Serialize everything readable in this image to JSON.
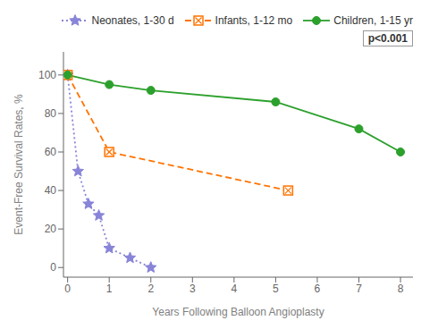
{
  "chart_data": {
    "type": "line",
    "xlabel": "Years Following Balloon Angioplasty",
    "ylabel": "Event-Free Survival Rates, %",
    "xlim": [
      -0.1,
      8.3
    ],
    "ylim": [
      -5,
      112
    ],
    "xticks": [
      0,
      1,
      2,
      3,
      4,
      5,
      6,
      7,
      8
    ],
    "yticks": [
      0,
      20,
      40,
      60,
      80,
      100
    ],
    "grid": false,
    "legend": "upper right",
    "annotations": [
      "p<0.001"
    ],
    "series": [
      {
        "name": "Neonates, 1-30 d",
        "x": [
          0,
          0.25,
          0.5,
          0.75,
          1.0,
          1.5,
          2.0
        ],
        "values": [
          100,
          50,
          33,
          27,
          10,
          5,
          0
        ],
        "color": "#8884d8",
        "marker": "star",
        "line_style": "dotted"
      },
      {
        "name": "Infants, 1-12 mo",
        "x": [
          0,
          1.0,
          5.3
        ],
        "values": [
          100,
          60,
          40
        ],
        "color": "#ff7300",
        "marker": "square-x",
        "line_style": "dashed"
      },
      {
        "name": "Children, 1-15 yr",
        "x": [
          0,
          1,
          2,
          5,
          7,
          8
        ],
        "values": [
          100,
          95,
          92,
          86,
          72,
          60
        ],
        "color": "#2ca02c",
        "marker": "circle",
        "line_style": "solid"
      }
    ]
  }
}
